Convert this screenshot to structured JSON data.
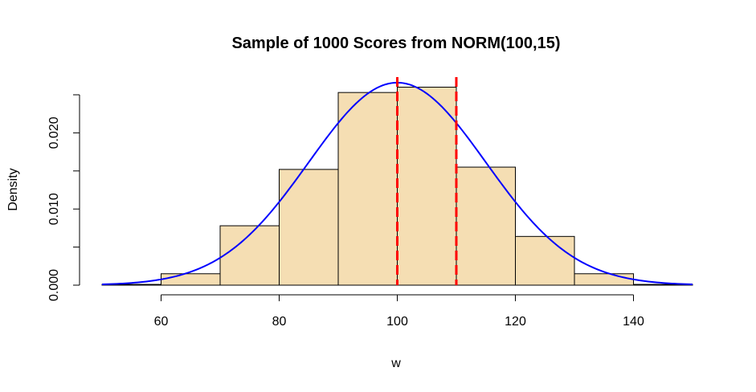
{
  "chart_data": {
    "type": "bar",
    "subtype": "histogram",
    "title": "Sample of 1000 Scores from NORM(100,15)",
    "xlabel": "w",
    "ylabel": "Density",
    "xlim": [
      50,
      150
    ],
    "ylim": [
      0,
      0.025
    ],
    "x_ticks": [
      60,
      80,
      100,
      120,
      140
    ],
    "y_ticks": [
      0.0,
      0.005,
      0.01,
      0.015,
      0.02,
      0.025
    ],
    "x_tick_labels": [
      "60",
      "80",
      "100",
      "120",
      "140"
    ],
    "y_tick_labels": [
      "0.000",
      "",
      "0.010",
      "",
      "0.020",
      ""
    ],
    "bins": [
      {
        "start": 50,
        "end": 60,
        "density": 0.0001
      },
      {
        "start": 60,
        "end": 70,
        "density": 0.0015
      },
      {
        "start": 70,
        "end": 80,
        "density": 0.0078
      },
      {
        "start": 80,
        "end": 90,
        "density": 0.0152
      },
      {
        "start": 90,
        "end": 100,
        "density": 0.0253
      },
      {
        "start": 100,
        "end": 110,
        "density": 0.026
      },
      {
        "start": 110,
        "end": 120,
        "density": 0.0155
      },
      {
        "start": 120,
        "end": 130,
        "density": 0.0064
      },
      {
        "start": 130,
        "end": 140,
        "density": 0.0015
      },
      {
        "start": 140,
        "end": 150,
        "density": 0.0001
      }
    ],
    "bar_color": "#f5deb3",
    "bar_border_color": "#000000",
    "curve": {
      "type": "normal_density",
      "mean": 100,
      "sd": 15,
      "color": "#0000ff"
    },
    "vlines": [
      {
        "x": 100,
        "color": "#ff0000",
        "style": "dashed"
      },
      {
        "x": 110,
        "color": "#ff0000",
        "style": "dashed"
      }
    ],
    "grid": false
  }
}
